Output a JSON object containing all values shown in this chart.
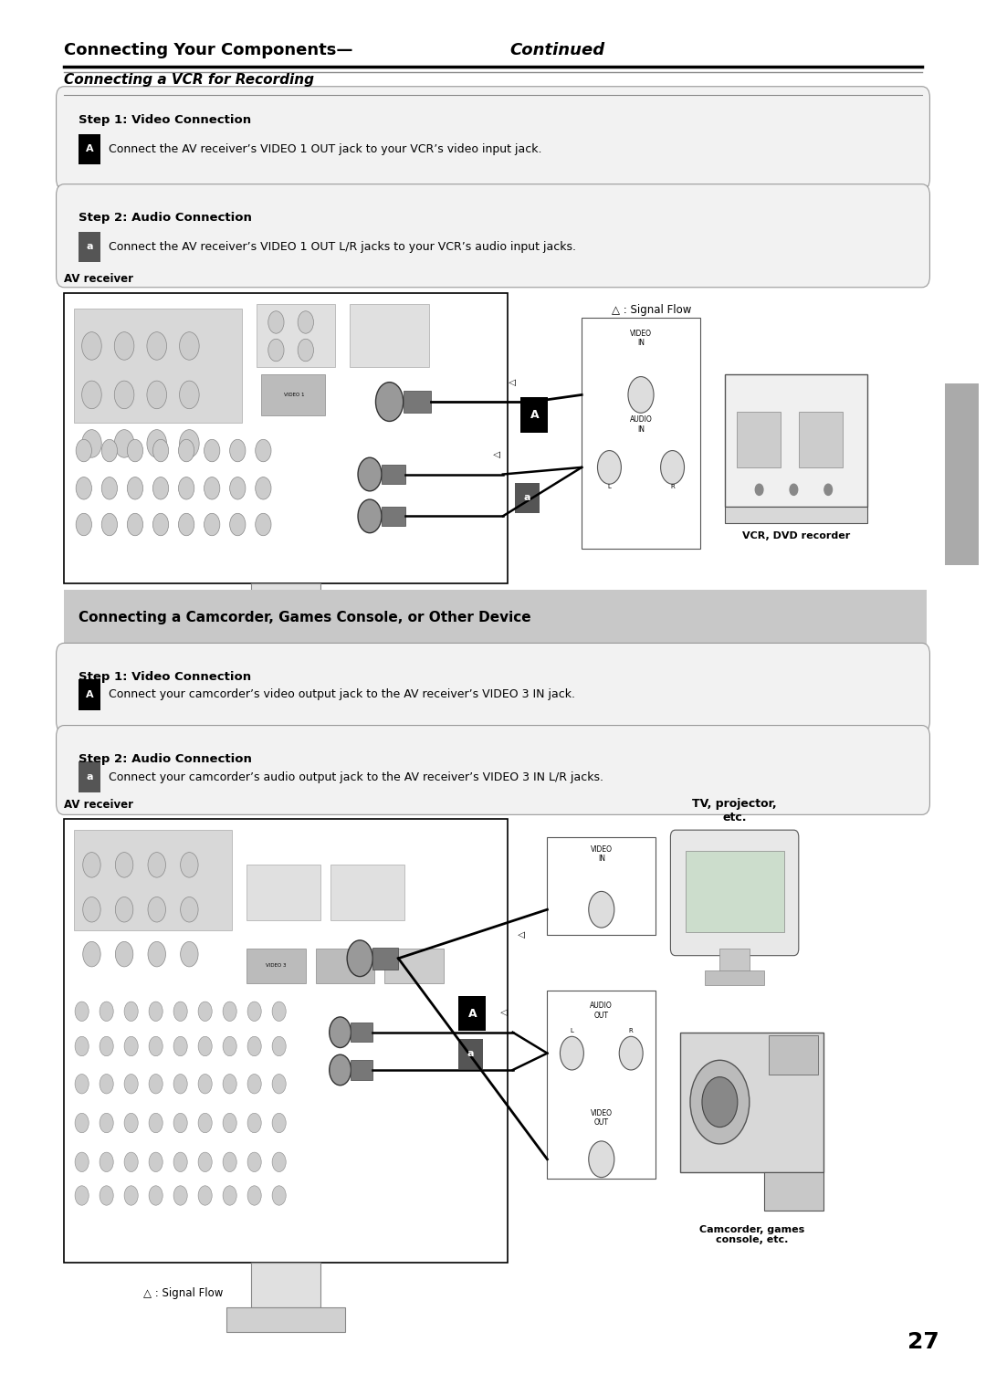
{
  "page_bg": "#ffffff",
  "page_width": 10.8,
  "page_height": 15.28,
  "title_bold": "Connecting Your Components—",
  "title_italic": "Continued",
  "title_fontsize": 13,
  "sidebar_color": "#aaaaaa",
  "section1_title": "Connecting a VCR for Recording",
  "vcr_step1_title": "Step 1: Video Connection",
  "vcr_step1_body": "Connect the AV receiver’s VIDEO 1 OUT jack to your VCR’s video input jack.",
  "vcr_step2_title": "Step 2: Audio Connection",
  "vcr_step2_body": "Connect the AV receiver’s VIDEO 1 OUT L/R jacks to your VCR’s audio input jacks.",
  "vcr_diagram_label": "AV receiver",
  "signal_flow_label": "△ : Signal Flow",
  "vcr_device_label": "VCR, DVD recorder",
  "section2_title": "Connecting a Camcorder, Games Console, or Other Device",
  "section2_bg": "#c8c8c8",
  "cam_step1_title": "Step 1: Video Connection",
  "cam_step1_body": "Connect your camcorder’s video output jack to the AV receiver’s VIDEO 3 IN jack.",
  "cam_step2_title": "Step 2: Audio Connection",
  "cam_step2_body": "Connect your camcorder’s audio output jack to the AV receiver’s VIDEO 3 IN L/R jacks.",
  "cam_diagram_label": "AV receiver",
  "cam_signal_flow_label": "△ : Signal Flow",
  "cam_tv_label": "TV, projector,\netc.",
  "cam_device_label": "Camcorder, games\nconsole, etc.",
  "page_num": "27"
}
